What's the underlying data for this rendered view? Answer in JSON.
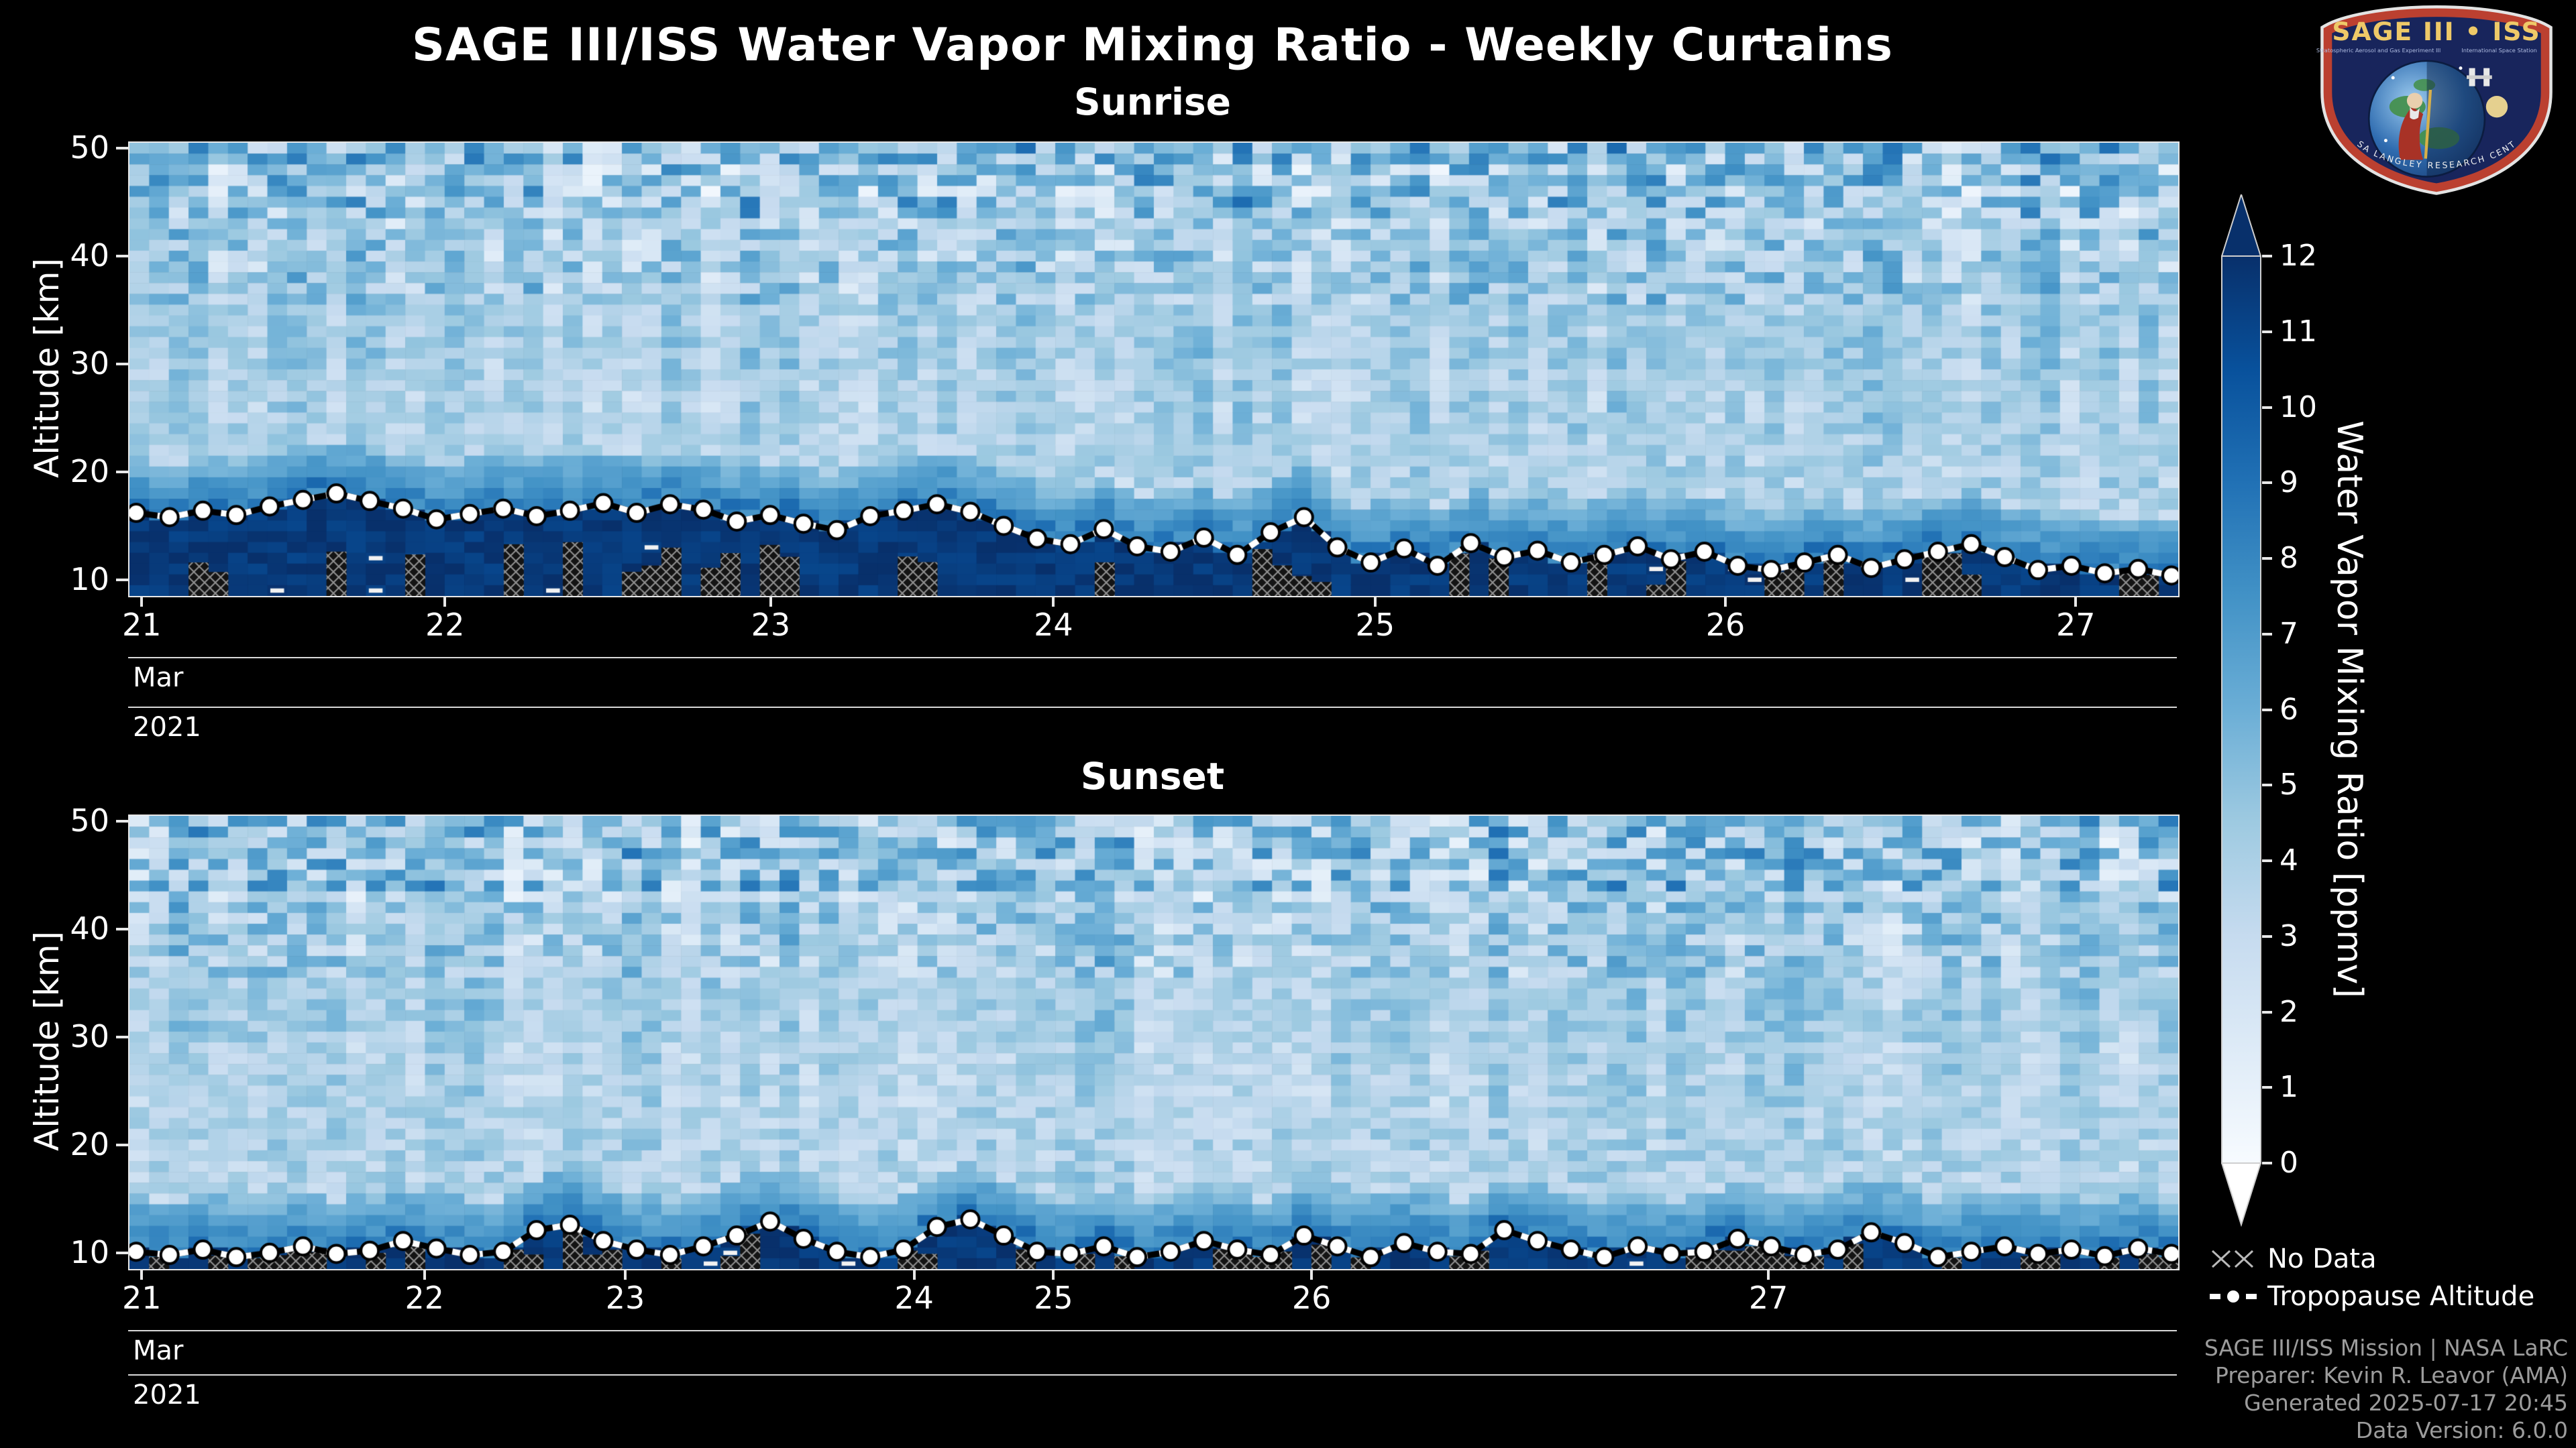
{
  "title": "SAGE III/ISS Water Vapor Mixing Ratio - Weekly Curtains",
  "logo": {
    "title": "SAGE III • ISS",
    "left_small": "Stratospheric Aerosol and Gas Experiment III",
    "right_small": "International Space Station",
    "banner": "NASA LANGLEY RESEARCH CENTER"
  },
  "legend": {
    "no_data_label": "No Data",
    "tropopause_label": "Tropopause Altitude"
  },
  "credits": [
    "SAGE III/ISS Mission | NASA LaRC",
    "Preparer: Kevin R. Leavor (AMA)",
    "Generated 2025-07-17 20:45",
    "Data Version: 6.0.0"
  ],
  "colorbar": {
    "label": "Water Vapor Mixing Ratio [ppmv]",
    "ticks": [
      0,
      1,
      2,
      3,
      4,
      5,
      6,
      7,
      8,
      9,
      10,
      11,
      12
    ],
    "range": [
      0,
      12
    ],
    "colormap": [
      "#f7fbff",
      "#deebf7",
      "#c6dbef",
      "#9ecae1",
      "#6baed6",
      "#4292c6",
      "#2171b5",
      "#08519c",
      "#08306b"
    ]
  },
  "chart_data": {
    "type": "heatmap",
    "units": "ppmv",
    "value_range": [
      0,
      12
    ],
    "x_axis": "Date (Mar 21 - Mar 27, 2021)",
    "y_axis": "Altitude [km]",
    "profile_description": "Curtain plots of individual SAGE III/ISS solar occultation profiles. High water vapor (10-12 ppmv, dark navy) below the tropopause, ~4-5 ppmv through the stratosphere (20-44 km), noisy 1-9 ppmv speckle above ~44 km. Cross-hatched cells below the tropopause mark missing data. White circle markers trace the tropopause altitude.",
    "panels": [
      {
        "title": "Sunrise",
        "ylabel": "Altitude [km]",
        "ylim": [
          8.5,
          50.5
        ],
        "yticks": [
          10,
          20,
          30,
          40,
          50
        ],
        "xticks": [
          {
            "label": "21",
            "f": 0.006
          },
          {
            "label": "22",
            "f": 0.154
          },
          {
            "label": "23",
            "f": 0.313
          },
          {
            "label": "24",
            "f": 0.451
          },
          {
            "label": "25",
            "f": 0.608
          },
          {
            "label": "26",
            "f": 0.779
          },
          {
            "label": "27",
            "f": 0.95
          }
        ],
        "x_month": "Mar",
        "x_year": "2021",
        "seed": 42,
        "tropopause_km": [
          16.2,
          15.8,
          16.4,
          16.0,
          16.8,
          17.4,
          18.0,
          17.3,
          16.6,
          15.6,
          16.1,
          16.6,
          15.9,
          16.4,
          17.1,
          16.2,
          17.0,
          16.5,
          15.4,
          16.0,
          15.2,
          14.6,
          15.9,
          16.4,
          17.0,
          16.3,
          15.0,
          13.8,
          13.3,
          14.7,
          13.1,
          12.6,
          13.9,
          12.3,
          14.4,
          15.8,
          13.0,
          11.6,
          12.9,
          11.3,
          13.4,
          12.1,
          12.7,
          11.6,
          12.3,
          13.1,
          11.9,
          12.6,
          11.3,
          10.9,
          11.6,
          12.3,
          11.1,
          11.9,
          12.6,
          13.3,
          12.1,
          10.9,
          11.3,
          10.6,
          11.0,
          10.4
        ]
      },
      {
        "title": "Sunset",
        "ylabel": "Altitude [km]",
        "ylim": [
          8.5,
          50.5
        ],
        "yticks": [
          10,
          20,
          30,
          40,
          50
        ],
        "xticks": [
          {
            "label": "21",
            "f": 0.006
          },
          {
            "label": "22",
            "f": 0.144
          },
          {
            "label": "23",
            "f": 0.242
          },
          {
            "label": "24",
            "f": 0.383
          },
          {
            "label": "25",
            "f": 0.451
          },
          {
            "label": "26",
            "f": 0.577
          },
          {
            "label": "27",
            "f": 0.8
          }
        ],
        "x_month": "Mar",
        "x_year": "2021",
        "seed": 1337,
        "tropopause_km": [
          10.1,
          9.8,
          10.3,
          9.6,
          10.0,
          10.6,
          9.9,
          10.2,
          11.1,
          10.4,
          9.8,
          10.1,
          12.1,
          12.6,
          11.1,
          10.3,
          9.8,
          10.6,
          11.6,
          12.9,
          11.3,
          10.1,
          9.6,
          10.3,
          12.4,
          13.1,
          11.6,
          10.1,
          9.9,
          10.6,
          9.6,
          10.1,
          11.1,
          10.3,
          9.8,
          11.6,
          10.6,
          9.6,
          10.9,
          10.1,
          9.9,
          12.1,
          11.1,
          10.3,
          9.6,
          10.6,
          9.9,
          10.1,
          11.3,
          10.6,
          9.8,
          10.3,
          11.9,
          10.9,
          9.6,
          10.1,
          10.6,
          9.9,
          10.3,
          9.7,
          10.4,
          9.9
        ]
      }
    ]
  }
}
